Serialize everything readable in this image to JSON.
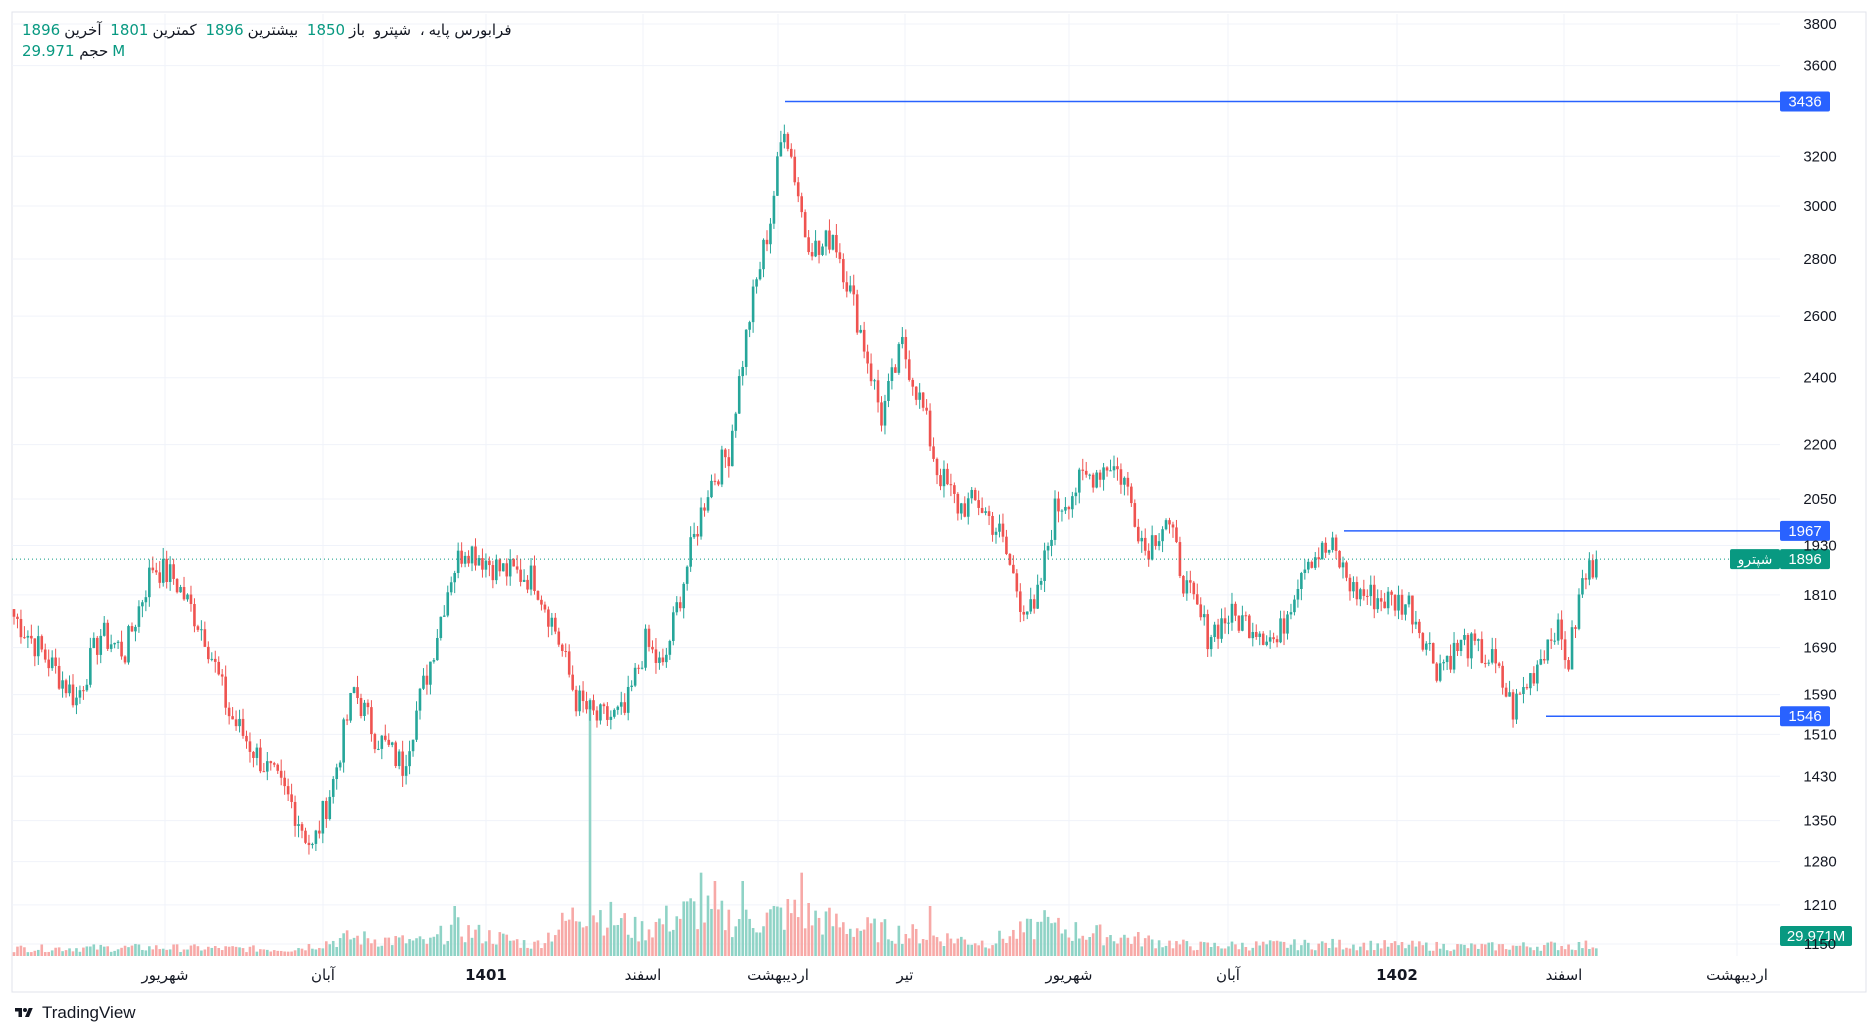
{
  "header": {
    "symbol": "شپترو",
    "market": "فرابورس پایه",
    "open_label": "باز",
    "open_value": "1850",
    "high_label": "بیشترین",
    "high_value": "1896",
    "low_label": "کمترین",
    "low_value": "1801",
    "close_label": "آخرین",
    "close_value": "1896",
    "volume_label": "حجم",
    "volume_value": "29.971M"
  },
  "brand": "TradingView",
  "colors": {
    "up": "#26a69a",
    "down": "#ef5350",
    "up_volume": "#8fd3c6",
    "down_volume": "#f7a9a7",
    "level_line": "#2962ff",
    "last_price": "#089981",
    "grid": "#f0f3fa"
  },
  "chart_data": {
    "type": "candlestick",
    "y_scale": "log",
    "ylim": [
      1150,
      3900
    ],
    "y_ticks": [
      "3800",
      "3600",
      "3200",
      "3000",
      "2800",
      "2600",
      "2400",
      "2200",
      "2050",
      "1930",
      "1810",
      "1690",
      "1590",
      "1510",
      "1430",
      "1350",
      "1280",
      "1210",
      "1150"
    ],
    "x_ticks": [
      {
        "label": "شهریور",
        "major": false
      },
      {
        "label": "آبان",
        "major": false
      },
      {
        "label": "1401",
        "major": true
      },
      {
        "label": "اسفند",
        "major": false
      },
      {
        "label": "اردیبهشت",
        "major": false
      },
      {
        "label": "تیر",
        "major": false
      },
      {
        "label": "شهریور",
        "major": false
      },
      {
        "label": "آبان",
        "major": false
      },
      {
        "label": "1402",
        "major": true
      },
      {
        "label": "اسفند",
        "major": false
      },
      {
        "label": "اردیبهشت",
        "major": false
      }
    ],
    "horizontal_levels": [
      {
        "value": 3436,
        "label": "3436"
      },
      {
        "value": 1967,
        "label": "1967"
      },
      {
        "value": 1546,
        "label": "1546"
      }
    ],
    "last_price": {
      "value": 1896,
      "label": "1896",
      "symbol": "شپترو"
    },
    "last_volume_label": "29.971M",
    "anchors": [
      {
        "i": 0,
        "p": 1760
      },
      {
        "i": 12,
        "p": 1640
      },
      {
        "i": 18,
        "p": 1580
      },
      {
        "i": 25,
        "p": 1720
      },
      {
        "i": 32,
        "p": 1680
      },
      {
        "i": 40,
        "p": 1880
      },
      {
        "i": 46,
        "p": 1850
      },
      {
        "i": 55,
        "p": 1720
      },
      {
        "i": 62,
        "p": 1550
      },
      {
        "i": 70,
        "p": 1470
      },
      {
        "i": 80,
        "p": 1380
      },
      {
        "i": 86,
        "p": 1300
      },
      {
        "i": 92,
        "p": 1420
      },
      {
        "i": 98,
        "p": 1600
      },
      {
        "i": 104,
        "p": 1510
      },
      {
        "i": 112,
        "p": 1450
      },
      {
        "i": 120,
        "p": 1660
      },
      {
        "i": 126,
        "p": 1860
      },
      {
        "i": 130,
        "p": 1930
      },
      {
        "i": 140,
        "p": 1870
      },
      {
        "i": 150,
        "p": 1850
      },
      {
        "i": 156,
        "p": 1730
      },
      {
        "i": 162,
        "p": 1580
      },
      {
        "i": 168,
        "p": 1540
      },
      {
        "i": 176,
        "p": 1550
      },
      {
        "i": 182,
        "p": 1700
      },
      {
        "i": 187,
        "p": 1640
      },
      {
        "i": 194,
        "p": 1880
      },
      {
        "i": 200,
        "p": 2080
      },
      {
        "i": 206,
        "p": 2180
      },
      {
        "i": 212,
        "p": 2600
      },
      {
        "i": 218,
        "p": 2950
      },
      {
        "i": 222,
        "p": 3350
      },
      {
        "i": 224,
        "p": 3200
      },
      {
        "i": 228,
        "p": 2900
      },
      {
        "i": 232,
        "p": 2820
      },
      {
        "i": 236,
        "p": 2900
      },
      {
        "i": 244,
        "p": 2550
      },
      {
        "i": 250,
        "p": 2280
      },
      {
        "i": 256,
        "p": 2500
      },
      {
        "i": 262,
        "p": 2300
      },
      {
        "i": 266,
        "p": 2130
      },
      {
        "i": 272,
        "p": 2030
      },
      {
        "i": 278,
        "p": 2040
      },
      {
        "i": 284,
        "p": 1960
      },
      {
        "i": 290,
        "p": 1800
      },
      {
        "i": 294,
        "p": 1760
      },
      {
        "i": 300,
        "p": 2020
      },
      {
        "i": 308,
        "p": 2100
      },
      {
        "i": 316,
        "p": 2150
      },
      {
        "i": 320,
        "p": 2100
      },
      {
        "i": 326,
        "p": 1920
      },
      {
        "i": 332,
        "p": 2000
      },
      {
        "i": 338,
        "p": 1820
      },
      {
        "i": 344,
        "p": 1720
      },
      {
        "i": 350,
        "p": 1760
      },
      {
        "i": 358,
        "p": 1740
      },
      {
        "i": 364,
        "p": 1700
      },
      {
        "i": 372,
        "p": 1900
      },
      {
        "i": 380,
        "p": 1920
      },
      {
        "i": 386,
        "p": 1820
      },
      {
        "i": 394,
        "p": 1800
      },
      {
        "i": 402,
        "p": 1790
      },
      {
        "i": 410,
        "p": 1650
      },
      {
        "i": 418,
        "p": 1700
      },
      {
        "i": 426,
        "p": 1660
      },
      {
        "i": 432,
        "p": 1560
      },
      {
        "i": 438,
        "p": 1640
      },
      {
        "i": 444,
        "p": 1740
      },
      {
        "i": 448,
        "p": 1660
      },
      {
        "i": 452,
        "p": 1840
      },
      {
        "i": 456,
        "p": 1896
      }
    ],
    "volume_anchors": [
      {
        "i": 0,
        "v": 0.9
      },
      {
        "i": 40,
        "v": 1.0
      },
      {
        "i": 80,
        "v": 0.8
      },
      {
        "i": 97,
        "v": 2.2
      },
      {
        "i": 120,
        "v": 1.6
      },
      {
        "i": 126,
        "v": 3.3
      },
      {
        "i": 150,
        "v": 1.3
      },
      {
        "i": 165,
        "v": 5.8
      },
      {
        "i": 180,
        "v": 3.0
      },
      {
        "i": 196,
        "v": 5.5
      },
      {
        "i": 210,
        "v": 4.0
      },
      {
        "i": 225,
        "v": 5.2
      },
      {
        "i": 240,
        "v": 3.5
      },
      {
        "i": 264,
        "v": 2.4
      },
      {
        "i": 280,
        "v": 1.6
      },
      {
        "i": 296,
        "v": 3.5
      },
      {
        "i": 320,
        "v": 2.2
      },
      {
        "i": 340,
        "v": 1.2
      },
      {
        "i": 380,
        "v": 1.4
      },
      {
        "i": 420,
        "v": 1.1
      },
      {
        "i": 456,
        "v": 1.3
      }
    ],
    "volume_spikes": [
      {
        "i": 166,
        "v": 30
      },
      {
        "i": 198,
        "v": 10
      },
      {
        "i": 202,
        "v": 9
      },
      {
        "i": 210,
        "v": 9
      },
      {
        "i": 227,
        "v": 10
      },
      {
        "i": 127,
        "v": 6
      },
      {
        "i": 264,
        "v": 6
      },
      {
        "i": 297,
        "v": 5.5
      }
    ],
    "bars": 457
  }
}
